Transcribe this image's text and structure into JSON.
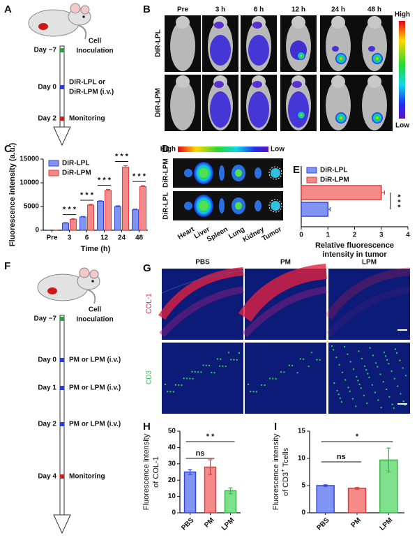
{
  "panel_labels": [
    "A",
    "B",
    "C",
    "D",
    "E",
    "F",
    "G",
    "H",
    "I"
  ],
  "timeline_a": {
    "days": [
      "Day −7",
      "Day 0",
      "Day 2"
    ],
    "events": [
      [
        "Cell",
        "Inoculation"
      ],
      [
        "DiR-LPL or",
        "DiR-LPM (i.v.)"
      ],
      [
        "Monitoring"
      ]
    ]
  },
  "imaging_b": {
    "timepoints": [
      "Pre",
      "3 h",
      "6 h",
      "12 h",
      "24 h",
      "48 h"
    ],
    "rows": [
      "DiR-LPL",
      "DiR-LPM"
    ],
    "scale": [
      "High",
      "Low"
    ]
  },
  "organs_d": {
    "scale": [
      "High",
      "Low"
    ],
    "rows": [
      "DiR-LPM",
      "DiR-LPL"
    ],
    "organs": [
      "Heart",
      "Liver",
      "Spleen",
      "Lung",
      "Kidney",
      "Tumor"
    ]
  },
  "timeline_f": {
    "days": [
      "Day −7",
      "Day 0",
      "Day 1",
      "Day 2",
      "Day 4"
    ],
    "events": [
      [
        "Cell",
        "Inoculation"
      ],
      [
        "PM or LPM (i.v.)"
      ],
      [
        "PM or LPM (i.v.)"
      ],
      [
        "PM or LPM (i.v.)"
      ],
      [
        "Monitoring"
      ]
    ]
  },
  "histology_g": {
    "groups": [
      "PBS",
      "PM",
      "LPM"
    ],
    "stains": [
      "COL-1",
      "CD3"
    ]
  },
  "chart_data": [
    {
      "type": "bar",
      "categories": [
        "Pre",
        "3",
        "6",
        "12",
        "24",
        "48"
      ],
      "series": [
        {
          "name": "DiR-LPL",
          "color": "#8294f2",
          "edgecolor": "#3346d6",
          "values": [
            0,
            1500,
            2800,
            6100,
            5000,
            4300
          ],
          "errors": [
            0,
            100,
            100,
            100,
            150,
            150
          ]
        },
        {
          "name": "DiR-LPM",
          "color": "#f48a8a",
          "edgecolor": "#e03a3a",
          "values": [
            0,
            2300,
            5300,
            8400,
            13300,
            9200
          ],
          "errors": [
            0,
            100,
            150,
            200,
            300,
            200
          ]
        }
      ],
      "significance": [
        null,
        "* * *",
        "* * *",
        "* * *",
        "* * *",
        "* * *"
      ],
      "xlabel": "Time (h)",
      "ylabel": "Fluorescence intensity (a.u.)",
      "ylim": [
        0,
        15000
      ],
      "yticks": [
        0,
        5000,
        10000,
        15000
      ],
      "legend": "upper left"
    },
    {
      "type": "bar",
      "orientation": "horizontal",
      "series": [
        {
          "name": "DiR-LPL",
          "color": "#8294f2",
          "edgecolor": "#3346d6",
          "values": [
            1.0
          ],
          "errors": [
            0.08
          ]
        },
        {
          "name": "DiR-LPM",
          "color": "#f48a8a",
          "edgecolor": "#e03a3a",
          "values": [
            3.0
          ],
          "errors": [
            0.12
          ]
        }
      ],
      "annotation": "* * *",
      "xlabel": [
        "Relative fluorescence",
        "intensity in tumor"
      ],
      "xlim": [
        0,
        4
      ],
      "xticks": [
        0,
        1,
        2,
        3,
        4
      ],
      "legend": "upper left"
    },
    {
      "type": "bar",
      "categories": [
        "PBS",
        "PM",
        "LPM"
      ],
      "values": [
        25,
        28,
        13.5
      ],
      "errors": [
        1.5,
        4.5,
        1.8
      ],
      "colors": [
        "#8294f2",
        "#f48a8a",
        "#7fe08c"
      ],
      "edgecolors": [
        "#3346d6",
        "#e03a3a",
        "#35b548"
      ],
      "annotations": [
        "ns",
        "* *"
      ],
      "ylabel": [
        "Fluorescence intensity",
        "of COL-1"
      ],
      "ylim": [
        0,
        50
      ],
      "yticks": [
        0,
        10,
        20,
        30,
        40,
        50
      ]
    },
    {
      "type": "bar",
      "categories": [
        "PBS",
        "PM",
        "LPM"
      ],
      "values": [
        5,
        4.5,
        9.7
      ],
      "errors": [
        0.15,
        0.15,
        2.2
      ],
      "colors": [
        "#8294f2",
        "#f48a8a",
        "#7fe08c"
      ],
      "edgecolors": [
        "#3346d6",
        "#e03a3a",
        "#35b548"
      ],
      "annotations": [
        "ns",
        "*"
      ],
      "ylabel": [
        "Fluorescence intensity",
        "of CD3"
      ],
      "ylabel_sup": "+",
      "ylabel_tail": " Tcells",
      "ylim": [
        0,
        15
      ],
      "yticks": [
        0,
        5,
        10,
        15
      ]
    }
  ]
}
